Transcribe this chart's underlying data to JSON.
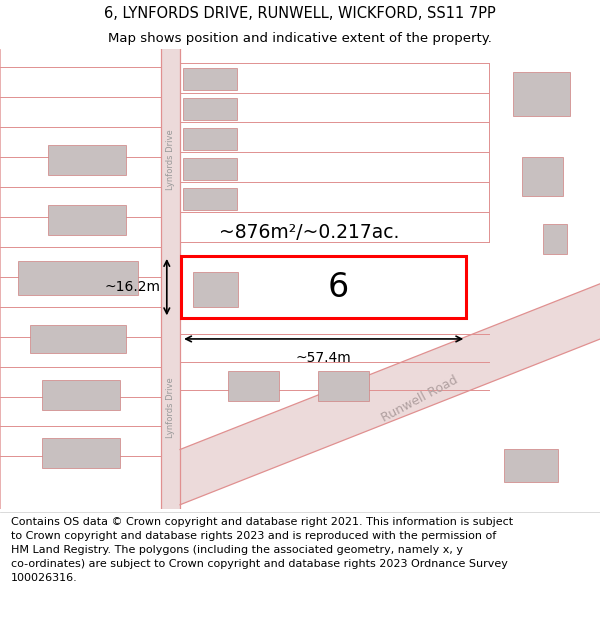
{
  "title_line1": "6, LYNFORDS DRIVE, RUNWELL, WICKFORD, SS11 7PP",
  "title_line2": "Map shows position and indicative extent of the property.",
  "footer_text": "Contains OS data © Crown copyright and database right 2021. This information is subject\nto Crown copyright and database rights 2023 and is reproduced with the permission of\nHM Land Registry. The polygons (including the associated geometry, namely x, y\nco-ordinates) are subject to Crown copyright and database rights 2023 Ordnance Survey\n100026316.",
  "background_color": "#ffffff",
  "map_bg_color": "#f7eded",
  "road_color": "#e09090",
  "building_fill": "#c8c0c0",
  "highlight_color": "#ff0000",
  "boundary_line_color": "#d08080",
  "area_label": "~876m²/~0.217ac.",
  "width_label": "~57.4m",
  "height_label": "~16.2m",
  "number_label": "6",
  "lynfords_drive_label": "Lynfords Drive",
  "runwell_road_label": "Runwell Road",
  "title_fontsize": 10.5,
  "subtitle_fontsize": 9.5,
  "footer_fontsize": 8.0
}
